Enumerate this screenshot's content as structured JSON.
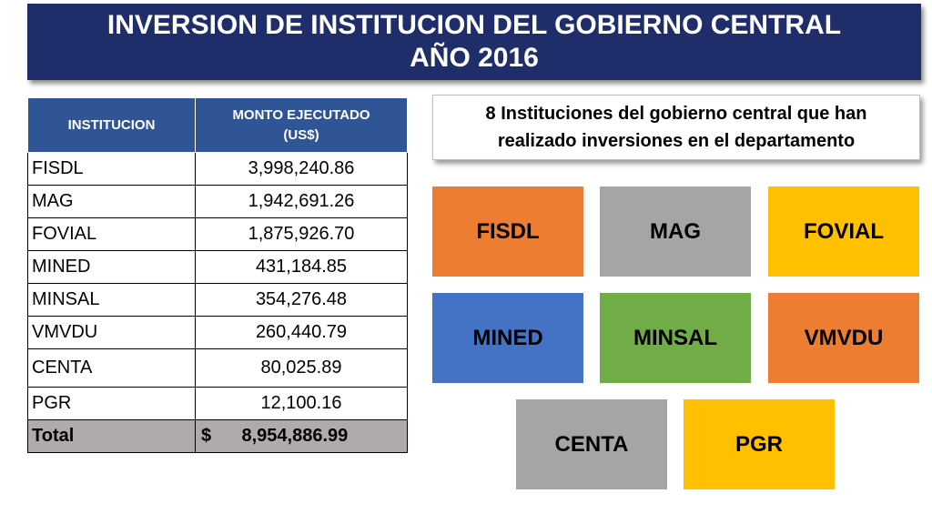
{
  "title": {
    "line1": "INVERSION DE INSTITUCION DEL GOBIERNO CENTRAL",
    "line2": "AÑO 2016"
  },
  "table": {
    "headers": {
      "institucion": "INSTITUCION",
      "monto_line1": "MONTO EJECUTADO",
      "monto_line2": "(US$)"
    },
    "rows": [
      {
        "name": "FISDL",
        "amount": "3,998,240.86"
      },
      {
        "name": "MAG",
        "amount": "1,942,691.26"
      },
      {
        "name": "FOVIAL",
        "amount": "1,875,926.70"
      },
      {
        "name": "MINED",
        "amount": "431,184.85"
      },
      {
        "name": "MINSAL",
        "amount": "354,276.48"
      },
      {
        "name": "VMVDU",
        "amount": "260,440.79"
      },
      {
        "name": "CENTA",
        "amount": "80,025.89"
      },
      {
        "name": "PGR",
        "amount": "12,100.16"
      }
    ],
    "total": {
      "label": "Total",
      "amount": "$      8,954,886.99"
    }
  },
  "callout": {
    "line1": "8 Instituciones del gobierno central que han",
    "line2": "realizado inversiones en el departamento"
  },
  "boxes": [
    {
      "label": "FISDL",
      "color": "#ed7d31"
    },
    {
      "label": "MAG",
      "color": "#a5a5a5"
    },
    {
      "label": "FOVIAL",
      "color": "#ffc000"
    },
    {
      "label": "MINED",
      "color": "#4472c4"
    },
    {
      "label": "MINSAL",
      "color": "#70ad47"
    },
    {
      "label": "VMVDU",
      "color": "#ed7d31"
    },
    {
      "label": "CENTA",
      "color": "#a5a5a5"
    },
    {
      "label": "PGR",
      "color": "#ffc000"
    }
  ]
}
